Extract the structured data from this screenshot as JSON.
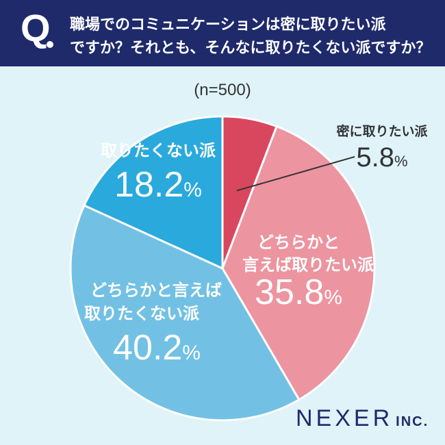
{
  "question": {
    "mark": "Q",
    "line1": "職場でのコミュニケーションは密に取りたい派",
    "line2": "ですか？それとも、そんなに取りたくない派ですか？"
  },
  "sample_size": "(n=500)",
  "colors": {
    "header_bg": "#1f2a6b",
    "background": "#dff3f9",
    "strong_yes": "#d9475f",
    "somewhat_yes": "#ec94a0",
    "somewhat_no": "#72c1e4",
    "strong_no": "#2aa9dc"
  },
  "chart_data": {
    "type": "pie",
    "start": "12 o'clock",
    "direction": "clockwise",
    "slices": [
      {
        "label": "密に取りたい派",
        "value": 5.8,
        "value_text": "5.8",
        "color": "#d9475f"
      },
      {
        "label": "どちらかと言えば取りたい派",
        "label_lines": [
          "どちらかと",
          "言えば取りたい派"
        ],
        "value": 35.8,
        "value_text": "35.8",
        "color": "#ec94a0"
      },
      {
        "label": "どちらかと言えば取りたくない派",
        "label_lines": [
          "どちらかと言えば",
          "取りたくない派"
        ],
        "value": 40.2,
        "value_text": "40.2",
        "color": "#72c1e4"
      },
      {
        "label": "取りたくない派",
        "value": 18.2,
        "value_text": "18.2",
        "color": "#2aa9dc"
      }
    ],
    "unit": "%"
  },
  "brand": {
    "name": "NEXER",
    "suffix": "INC."
  }
}
